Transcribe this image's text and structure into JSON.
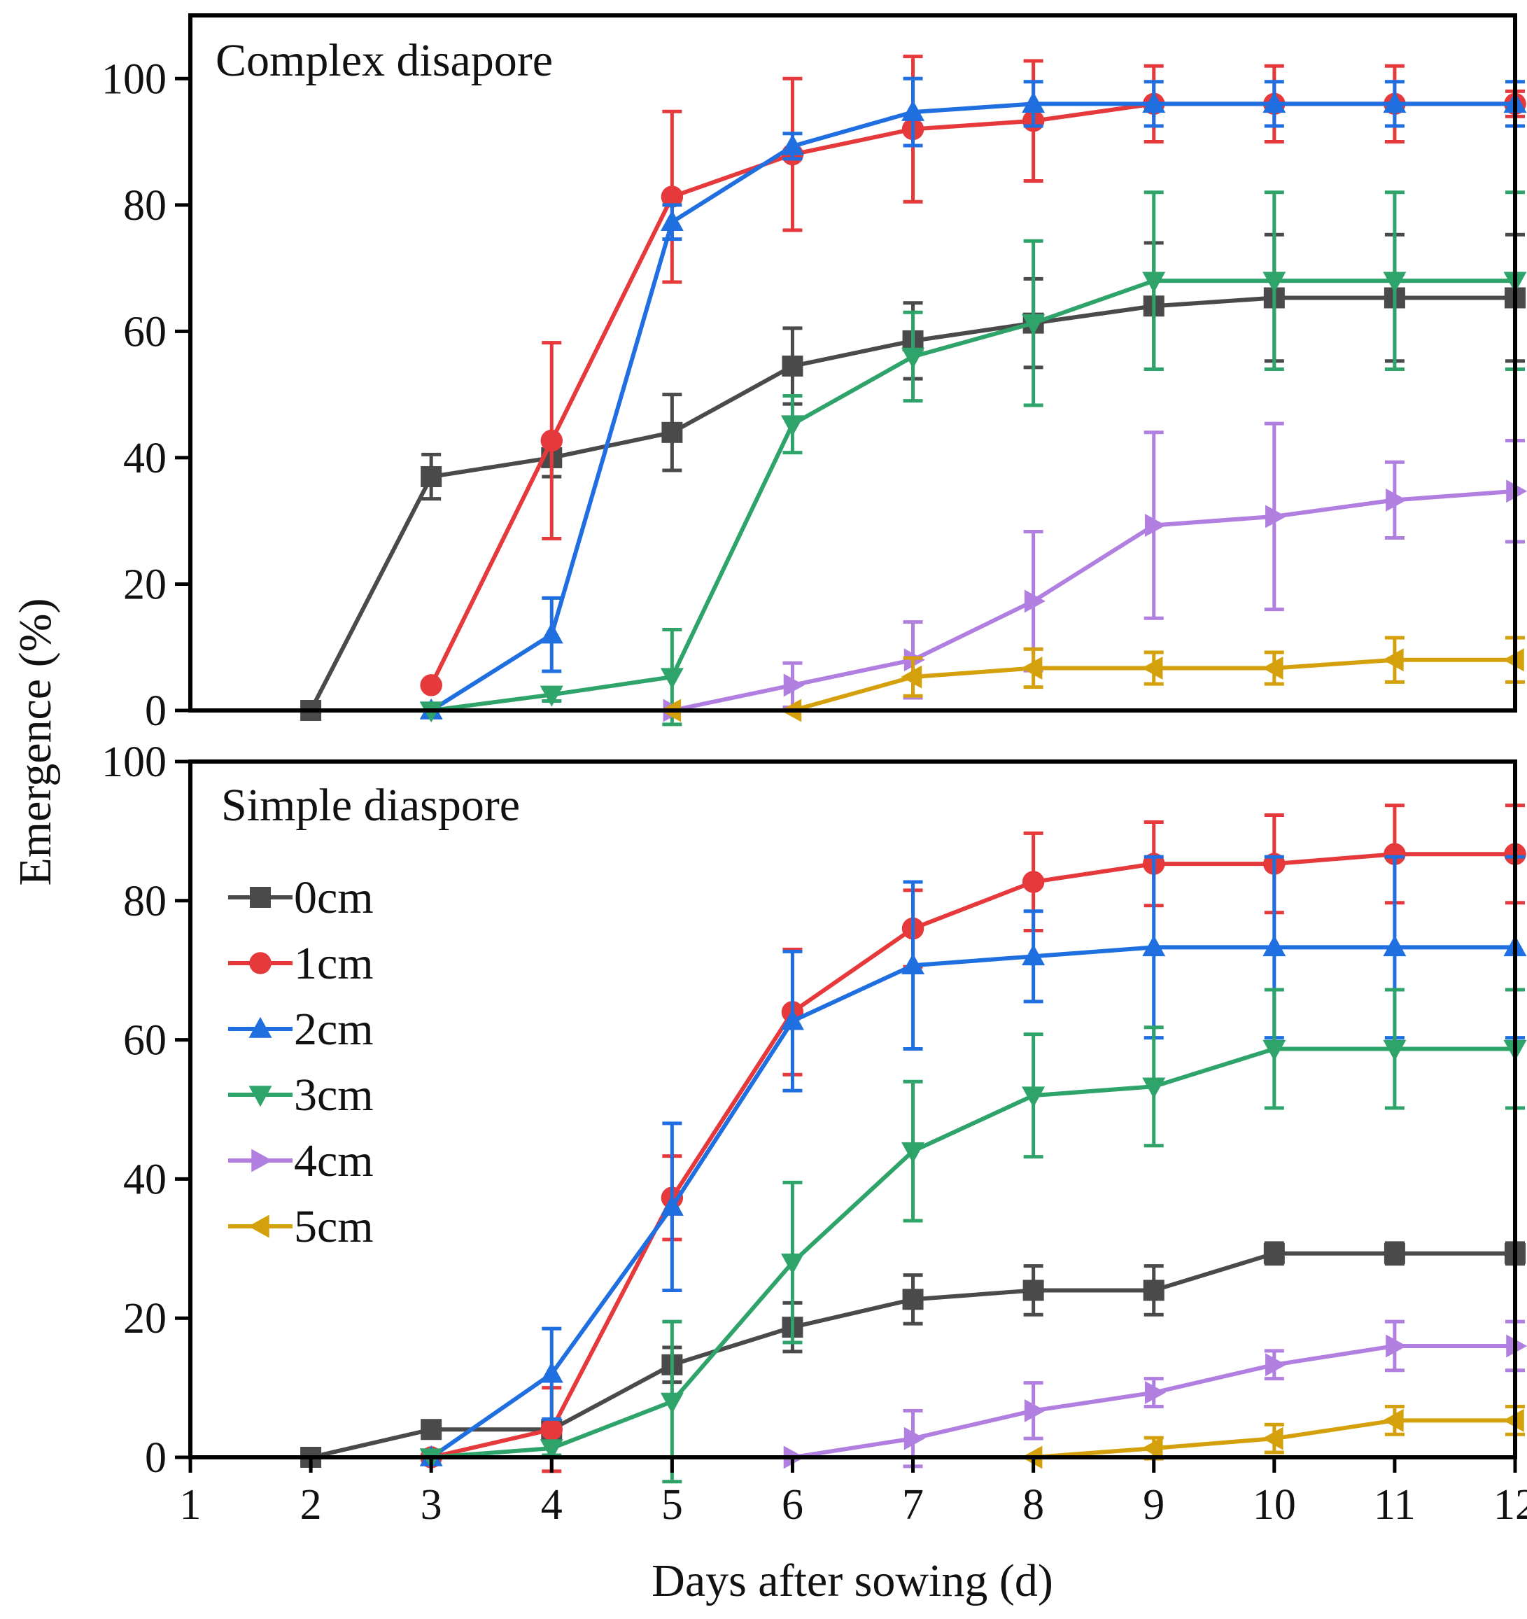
{
  "axes": {
    "xlabel": "Days after sowing (d)",
    "ylabel": "Emergence (%)"
  },
  "series_style": {
    "0cm": {
      "color": "#4a4a4a",
      "marker": "square"
    },
    "1cm": {
      "color": "#e5393b",
      "marker": "circle"
    },
    "2cm": {
      "color": "#1f6fe0",
      "marker": "triangle-up"
    },
    "3cm": {
      "color": "#2ea36a",
      "marker": "triangle-down"
    },
    "4cm": {
      "color": "#b07fe0",
      "marker": "triangle-right"
    },
    "5cm": {
      "color": "#d4a10c",
      "marker": "triangle-left"
    }
  },
  "legend": {
    "panel": "bottom",
    "placement": "top-left"
  },
  "chart_data": [
    {
      "type": "line",
      "title": "Complex disapore",
      "xlim": [
        1,
        12
      ],
      "ylim": [
        0,
        110
      ],
      "x_ticks": [
        1,
        2,
        3,
        4,
        5,
        6,
        7,
        8,
        9,
        10,
        11,
        12
      ],
      "y_ticks": [
        0,
        20,
        40,
        60,
        80,
        100
      ],
      "series": [
        {
          "name": "0cm",
          "x": [
            2,
            3,
            4,
            5,
            6,
            7,
            8,
            9,
            10,
            11,
            12
          ],
          "y": [
            0,
            37,
            40,
            44,
            54.5,
            58.5,
            61.3,
            64,
            65.3,
            65.3,
            65.3
          ],
          "err": [
            0,
            3.5,
            3,
            6,
            6,
            6,
            7,
            10,
            10,
            10,
            10
          ]
        },
        {
          "name": "1cm",
          "x": [
            3,
            4,
            5,
            6,
            7,
            8,
            9,
            10,
            11,
            12
          ],
          "y": [
            4,
            42.7,
            81.3,
            88,
            92,
            93.3,
            96,
            96,
            96,
            96
          ],
          "err": [
            0,
            15.5,
            13.5,
            12,
            11.5,
            9.5,
            6,
            6,
            6,
            2
          ]
        },
        {
          "name": "2cm",
          "x": [
            3,
            4,
            5,
            6,
            7,
            8,
            9,
            10,
            11,
            12
          ],
          "y": [
            0,
            12,
            77.3,
            89.3,
            94.7,
            96,
            96,
            96,
            96,
            96
          ],
          "err": [
            0,
            5.8,
            2.7,
            2,
            5.3,
            3.5,
            3.5,
            3.5,
            3.5,
            3.5
          ]
        },
        {
          "name": "3cm",
          "x": [
            3,
            4,
            5,
            6,
            7,
            8,
            9,
            10,
            11,
            12
          ],
          "y": [
            0,
            2.5,
            5.3,
            45.3,
            56,
            61.3,
            68,
            68,
            68,
            68
          ],
          "err": [
            0,
            1,
            7.5,
            4.5,
            7,
            13,
            14,
            14,
            14,
            14
          ]
        },
        {
          "name": "4cm",
          "x": [
            5,
            6,
            7,
            8,
            9,
            10,
            11,
            12
          ],
          "y": [
            0,
            4,
            8,
            17.3,
            29.3,
            30.7,
            33.3,
            34.7
          ],
          "err": [
            0,
            3.5,
            6,
            11,
            14.7,
            14.7,
            6,
            8
          ]
        },
        {
          "name": "5cm",
          "x": [
            5,
            6,
            7,
            8,
            9,
            10,
            11,
            12
          ],
          "y": [
            0,
            0,
            5.3,
            6.7,
            6.7,
            6.7,
            8,
            8
          ],
          "err": [
            0,
            0,
            3,
            3,
            2.5,
            2.5,
            3.5,
            3.5
          ]
        }
      ]
    },
    {
      "type": "line",
      "title": "Simple diaspore",
      "xlim": [
        1,
        12
      ],
      "ylim": [
        0,
        100
      ],
      "x_ticks": [
        1,
        2,
        3,
        4,
        5,
        6,
        7,
        8,
        9,
        10,
        11,
        12
      ],
      "y_ticks": [
        0,
        20,
        40,
        60,
        80,
        100
      ],
      "series": [
        {
          "name": "0cm",
          "x": [
            2,
            3,
            4,
            5,
            6,
            7,
            8,
            9,
            10,
            11,
            12
          ],
          "y": [
            0,
            4,
            4,
            13.3,
            18.7,
            22.7,
            24,
            24,
            29.3,
            29.3,
            29.3
          ],
          "err": [
            0,
            1,
            1,
            2.5,
            3.5,
            3.5,
            3.5,
            3.5,
            1.5,
            1.5,
            1.5
          ]
        },
        {
          "name": "1cm",
          "x": [
            3,
            4,
            5,
            6,
            7,
            8,
            9,
            10,
            11,
            12
          ],
          "y": [
            0,
            4,
            37.3,
            64,
            76,
            82.7,
            85.3,
            85.3,
            86.7,
            86.7
          ],
          "err": [
            0,
            6,
            6,
            9,
            5.5,
            7,
            6,
            7,
            7,
            7
          ]
        },
        {
          "name": "2cm",
          "x": [
            3,
            4,
            5,
            6,
            7,
            8,
            9,
            10,
            11,
            12
          ],
          "y": [
            0,
            12,
            36,
            62.7,
            70.7,
            72,
            73.3,
            73.3,
            73.3,
            73.3
          ],
          "err": [
            0,
            6.5,
            12,
            10,
            12,
            6.5,
            13,
            13,
            13,
            13
          ]
        },
        {
          "name": "3cm",
          "x": [
            3,
            4,
            5,
            6,
            7,
            8,
            9,
            10,
            11,
            12
          ],
          "y": [
            0,
            1.3,
            8,
            28,
            44,
            52,
            53.3,
            58.7,
            58.7,
            58.7
          ],
          "err": [
            0,
            1,
            11.5,
            11.5,
            10,
            8.8,
            8.5,
            8.5,
            8.5,
            8.5
          ]
        },
        {
          "name": "4cm",
          "x": [
            6,
            7,
            8,
            9,
            10,
            11,
            12
          ],
          "y": [
            0,
            2.7,
            6.7,
            9.3,
            13.3,
            16,
            16
          ],
          "err": [
            0,
            4,
            4,
            2,
            2,
            3.5,
            3.5
          ]
        },
        {
          "name": "5cm",
          "x": [
            8,
            9,
            10,
            11,
            12
          ],
          "y": [
            0,
            1.3,
            2.7,
            5.3,
            5.3
          ],
          "err": [
            0,
            1.5,
            2,
            2,
            2
          ]
        }
      ]
    }
  ]
}
